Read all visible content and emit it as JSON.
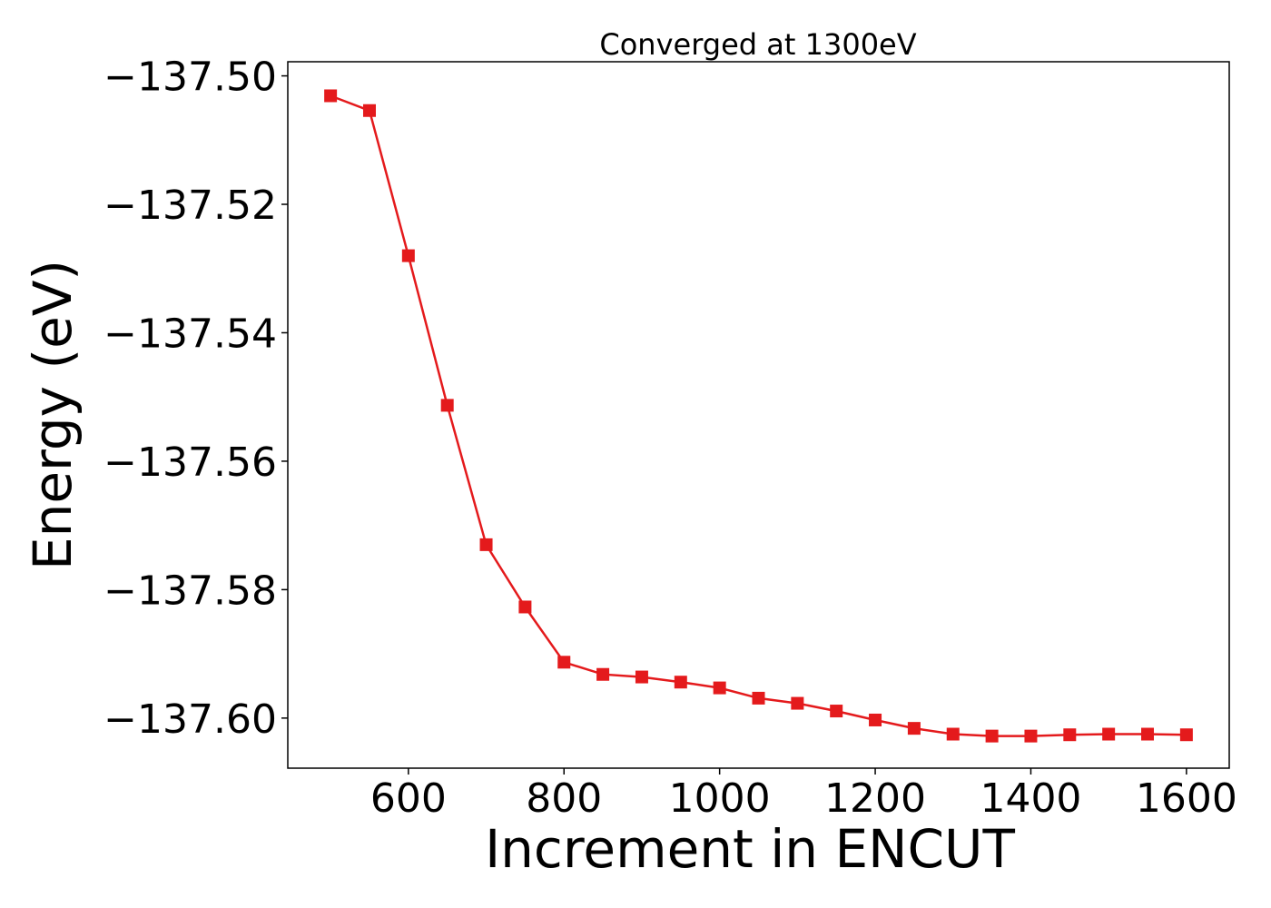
{
  "colors": {
    "series": "#e41a1c",
    "axes": "#000000",
    "background": "#ffffff"
  },
  "chart_data": {
    "type": "line",
    "title": "Converged at 1300eV",
    "xlabel": "Increment in ENCUT",
    "ylabel": "Energy (eV)",
    "xlim": [
      445,
      1655
    ],
    "ylim": [
      -137.6078,
      -137.4978
    ],
    "grid": false,
    "marker": "square",
    "x_ticks": [
      600,
      800,
      1000,
      1200,
      1400,
      1600
    ],
    "x_tick_labels": [
      "600",
      "800",
      "1000",
      "1200",
      "1400",
      "1600"
    ],
    "y_ticks": [
      -137.5,
      -137.52,
      -137.54,
      -137.56,
      -137.58,
      -137.6
    ],
    "y_tick_labels": [
      "−137.50",
      "−137.52",
      "−137.54",
      "−137.56",
      "−137.58",
      "−137.60"
    ],
    "series": [
      {
        "x": [
          500,
          550,
          600,
          650,
          700,
          750,
          800,
          850,
          900,
          950,
          1000,
          1050,
          1100,
          1150,
          1200,
          1250,
          1300,
          1350,
          1400,
          1450,
          1500,
          1550,
          1600
        ],
        "values": [
          -137.5031,
          -137.5054,
          -137.528,
          -137.5513,
          -137.573,
          -137.5827,
          -137.5913,
          -137.5932,
          -137.5936,
          -137.5944,
          -137.5953,
          -137.5969,
          -137.5977,
          -137.5989,
          -137.6003,
          -137.6016,
          -137.6025,
          -137.6028,
          -137.6028,
          -137.6026,
          -137.6025,
          -137.6025,
          -137.6026
        ]
      }
    ]
  }
}
